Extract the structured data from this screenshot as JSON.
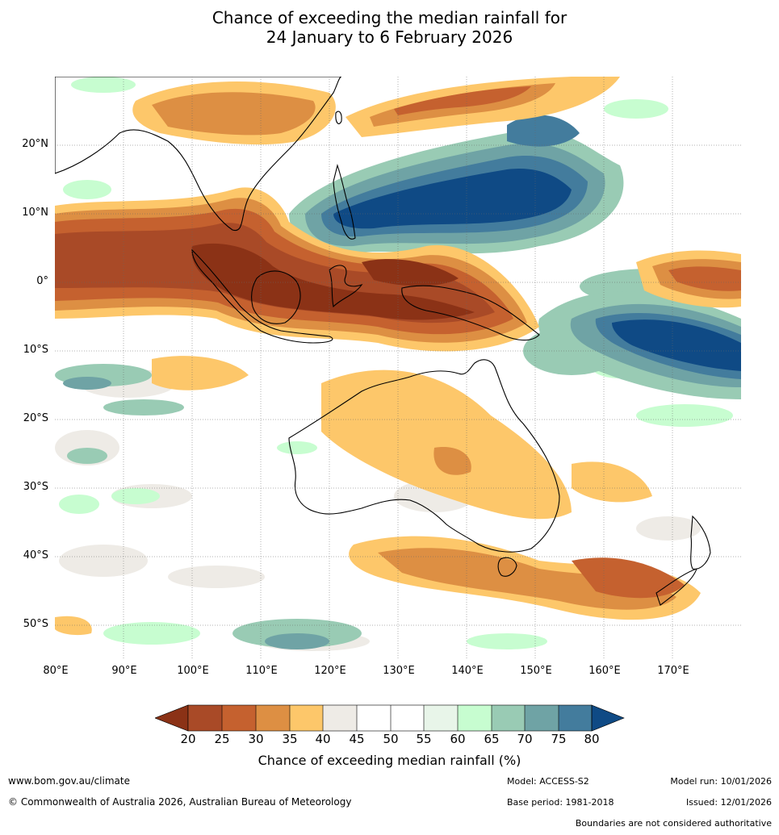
{
  "title_line1": "Chance of exceeding the median rainfall for",
  "title_line2": "24 January to 6 February 2026",
  "lat_labels": [
    "20°N",
    "10°N",
    "0°",
    "10°S",
    "20°S",
    "30°S",
    "40°S",
    "50°S"
  ],
  "lon_labels": [
    "80°E",
    "90°E",
    "100°E",
    "110°E",
    "120°E",
    "130°E",
    "140°E",
    "150°E",
    "160°E",
    "170°E"
  ],
  "colorbar": {
    "ticks": [
      "20",
      "25",
      "30",
      "35",
      "40",
      "45",
      "50",
      "55",
      "60",
      "65",
      "70",
      "75",
      "80"
    ],
    "colors": [
      "#8b3216",
      "#a94a27",
      "#c5612f",
      "#dd8f43",
      "#fdc76a",
      "#eeebe6",
      "#ffffff",
      "#ffffff",
      "#e8f5e9",
      "#c7fdd0",
      "#99cbb4",
      "#6fa3a5",
      "#437c9d",
      "#0f4a85"
    ],
    "label": "Chance of exceeding median rainfall (%)"
  },
  "footer": {
    "website": "www.bom.gov.au/climate",
    "copyright": "© Commonwealth of Australia 2026, Australian Bureau of Meteorology",
    "model": "Model: ACCESS-S2",
    "base_period": "Base period: 1981-2018",
    "model_run": "Model run: 10/01/2026",
    "issued": "Issued: 12/01/2026",
    "disclaimer": "Boundaries are not considered authoritative"
  }
}
